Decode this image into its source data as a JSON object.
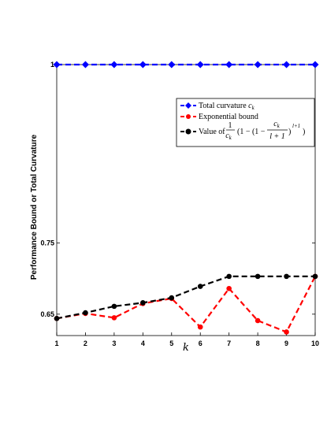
{
  "chart_data": {
    "type": "line",
    "xlabel": "k",
    "ylabel": "Performance Bound or Total Curvature",
    "x": [
      1,
      2,
      3,
      4,
      5,
      6,
      7,
      8,
      9,
      10
    ],
    "xticks": [
      "1",
      "2",
      "3",
      "4",
      "5",
      "6",
      "7",
      "8",
      "9",
      "10"
    ],
    "xlim": [
      1,
      10
    ],
    "ylim": [
      0.62,
      1.0
    ],
    "yticks": [
      {
        "value": 0.65,
        "label": "0.65"
      },
      {
        "value": 0.75,
        "label": "0.75"
      },
      {
        "value": 1.0,
        "label": "1"
      }
    ],
    "grid": false,
    "legend_position": "top-right",
    "series": [
      {
        "name": "Total curvature c_k",
        "color": "#0000ff",
        "marker": "diamond",
        "values": [
          1.0,
          1.0,
          1.0,
          1.0,
          1.0,
          1.0,
          1.0,
          1.0,
          1.0,
          1.0
        ]
      },
      {
        "name": "Exponential bound",
        "color": "#ff0000",
        "marker": "circle",
        "values": [
          0.644,
          0.651,
          0.645,
          0.665,
          0.672,
          0.632,
          0.686,
          0.641,
          0.625,
          0.703
        ]
      },
      {
        "name": "Value of 1/c_k (1 − (1 − c_k/(l+1))^(l+1))",
        "color": "#000000",
        "marker": "circle",
        "values": [
          0.644,
          0.652,
          0.661,
          0.666,
          0.673,
          0.689,
          0.703,
          0.703,
          0.703,
          0.703
        ]
      }
    ],
    "legend_text": {
      "s1_prefix": "Total curvature ",
      "s1_var": "c",
      "s1_sub": "k",
      "s2": "Exponential bound",
      "s3_prefix": "Value of",
      "frac_num": "1",
      "frac_den_var": "c",
      "frac_den_sub": "k",
      "paren_open": "(1 − (1 −",
      "inner_num_var": "c",
      "inner_num_sub": "k",
      "inner_den": "l + 1",
      "paren_close": ")",
      "exponent": "l+1",
      "close2": ")"
    }
  }
}
